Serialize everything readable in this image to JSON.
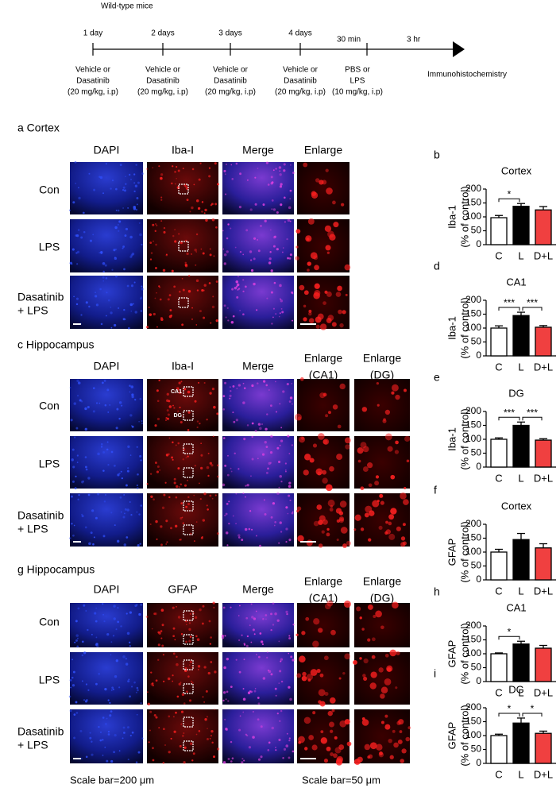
{
  "timeline": {
    "title": "Wild-type mice",
    "times": [
      "1 day",
      "2 days",
      "3 days",
      "4 days",
      "30 min",
      "3 hr"
    ],
    "treatments": [
      [
        "Vehicle or",
        "Dasatinib",
        "(20 mg/kg, i.p)"
      ],
      [
        "Vehicle or",
        "Dasatinib",
        "(20 mg/kg, i.p)"
      ],
      [
        "Vehicle or",
        "Dasatinib",
        "(20 mg/kg, i.p)"
      ],
      [
        "Vehicle or",
        "Dasatinib",
        "(20 mg/kg, i.p)"
      ],
      [
        "PBS or",
        "LPS",
        "(10 mg/kg, i.p)"
      ]
    ],
    "endpoint": "Immunohistochemistry"
  },
  "panels": [
    {
      "title": "a Cortex",
      "columns": [
        [
          "DAPI"
        ],
        [
          "Iba-I"
        ],
        [
          "Merge"
        ],
        [
          "Enlarge"
        ]
      ],
      "rows": [
        [
          "Con"
        ],
        [
          "LPS"
        ],
        [
          "Dasatinib",
          "+ LPS"
        ]
      ],
      "roi_labels": []
    },
    {
      "title": "c Hippocampus",
      "columns": [
        [
          "DAPI"
        ],
        [
          "Iba-I"
        ],
        [
          "Merge"
        ],
        [
          "Enlarge",
          "(CA1)"
        ],
        [
          "Enlarge",
          "(DG)"
        ]
      ],
      "rows": [
        [
          "Con"
        ],
        [
          "LPS"
        ],
        [
          "Dasatinib",
          "+ LPS"
        ]
      ],
      "roi_labels": [
        "CA1",
        "DG"
      ]
    },
    {
      "title": "g Hippocampus",
      "columns": [
        [
          "DAPI"
        ],
        [
          "GFAP"
        ],
        [
          "Merge"
        ],
        [
          "Enlarge",
          "(CA1)"
        ],
        [
          "Enlarge",
          "(DG)"
        ]
      ],
      "rows": [
        [
          "Con"
        ],
        [
          "LPS"
        ],
        [
          "Dasatinib",
          "+ LPS"
        ]
      ],
      "roi_labels": []
    }
  ],
  "scale_bars": [
    "Scale bar=200 μm",
    "Scale bar=50 μm"
  ],
  "chart_data": [
    {
      "type": "bar",
      "label": "b",
      "title": "Cortex",
      "y_label": [
        "Iba-1",
        "(% of control)"
      ],
      "categories": [
        "C",
        "L",
        "D+L"
      ],
      "values": [
        97,
        138,
        125
      ],
      "errors": [
        8,
        10,
        12
      ],
      "colors": [
        "#ffffff",
        "#000000",
        "#f04040"
      ],
      "ylim": [
        0,
        200
      ],
      "yticks": [
        0,
        50,
        100,
        150,
        200
      ],
      "brackets": [
        {
          "from": 0,
          "to": 1,
          "label": "*"
        }
      ]
    },
    {
      "type": "bar",
      "label": "d",
      "title": "CA1",
      "y_label": [
        "Iba-1",
        "(% of control)"
      ],
      "categories": [
        "C",
        "L",
        "D+L"
      ],
      "values": [
        100,
        145,
        103
      ],
      "errors": [
        8,
        12,
        6
      ],
      "colors": [
        "#ffffff",
        "#000000",
        "#f04040"
      ],
      "ylim": [
        0,
        200
      ],
      "yticks": [
        0,
        50,
        100,
        150,
        200
      ],
      "brackets": [
        {
          "from": 0,
          "to": 1,
          "label": "***"
        },
        {
          "from": 1,
          "to": 2,
          "label": "***"
        }
      ]
    },
    {
      "type": "bar",
      "label": "e",
      "title": "DG",
      "y_label": [
        "Iba-1",
        "(% of control)"
      ],
      "categories": [
        "C",
        "L",
        "D+L"
      ],
      "values": [
        100,
        150,
        97
      ],
      "errors": [
        5,
        12,
        5
      ],
      "colors": [
        "#ffffff",
        "#000000",
        "#f04040"
      ],
      "ylim": [
        0,
        200
      ],
      "yticks": [
        0,
        50,
        100,
        150,
        200
      ],
      "brackets": [
        {
          "from": 0,
          "to": 1,
          "label": "***"
        },
        {
          "from": 1,
          "to": 2,
          "label": "***"
        }
      ]
    },
    {
      "type": "bar",
      "label": "f",
      "title": "Cortex",
      "y_label": [
        "GFAP",
        "(% of control)"
      ],
      "categories": [
        "C",
        "L",
        "D+L"
      ],
      "values": [
        100,
        145,
        115
      ],
      "errors": [
        10,
        22,
        15
      ],
      "colors": [
        "#ffffff",
        "#000000",
        "#f04040"
      ],
      "ylim": [
        0,
        200
      ],
      "yticks": [
        0,
        50,
        100,
        150,
        200
      ],
      "brackets": []
    },
    {
      "type": "bar",
      "label": "h",
      "title": "CA1",
      "y_label": [
        "GFAP",
        "(% of control)"
      ],
      "categories": [
        "C",
        "L",
        "D+L"
      ],
      "values": [
        100,
        135,
        120
      ],
      "errors": [
        3,
        10,
        10
      ],
      "colors": [
        "#ffffff",
        "#000000",
        "#f04040"
      ],
      "ylim": [
        0,
        200
      ],
      "yticks": [
        0,
        50,
        100,
        150,
        200
      ],
      "brackets": [
        {
          "from": 0,
          "to": 1,
          "label": "*"
        }
      ]
    },
    {
      "type": "bar",
      "label": "i",
      "title": "DG",
      "y_label": [
        "GFAP",
        "(% of control)"
      ],
      "categories": [
        "C",
        "L",
        "D+L"
      ],
      "values": [
        100,
        145,
        108
      ],
      "errors": [
        5,
        18,
        8
      ],
      "colors": [
        "#ffffff",
        "#000000",
        "#f04040"
      ],
      "ylim": [
        0,
        200
      ],
      "yticks": [
        0,
        50,
        100,
        150,
        200
      ],
      "brackets": [
        {
          "from": 0,
          "to": 1,
          "label": "*"
        },
        {
          "from": 1,
          "to": 2,
          "label": "*"
        }
      ]
    }
  ]
}
